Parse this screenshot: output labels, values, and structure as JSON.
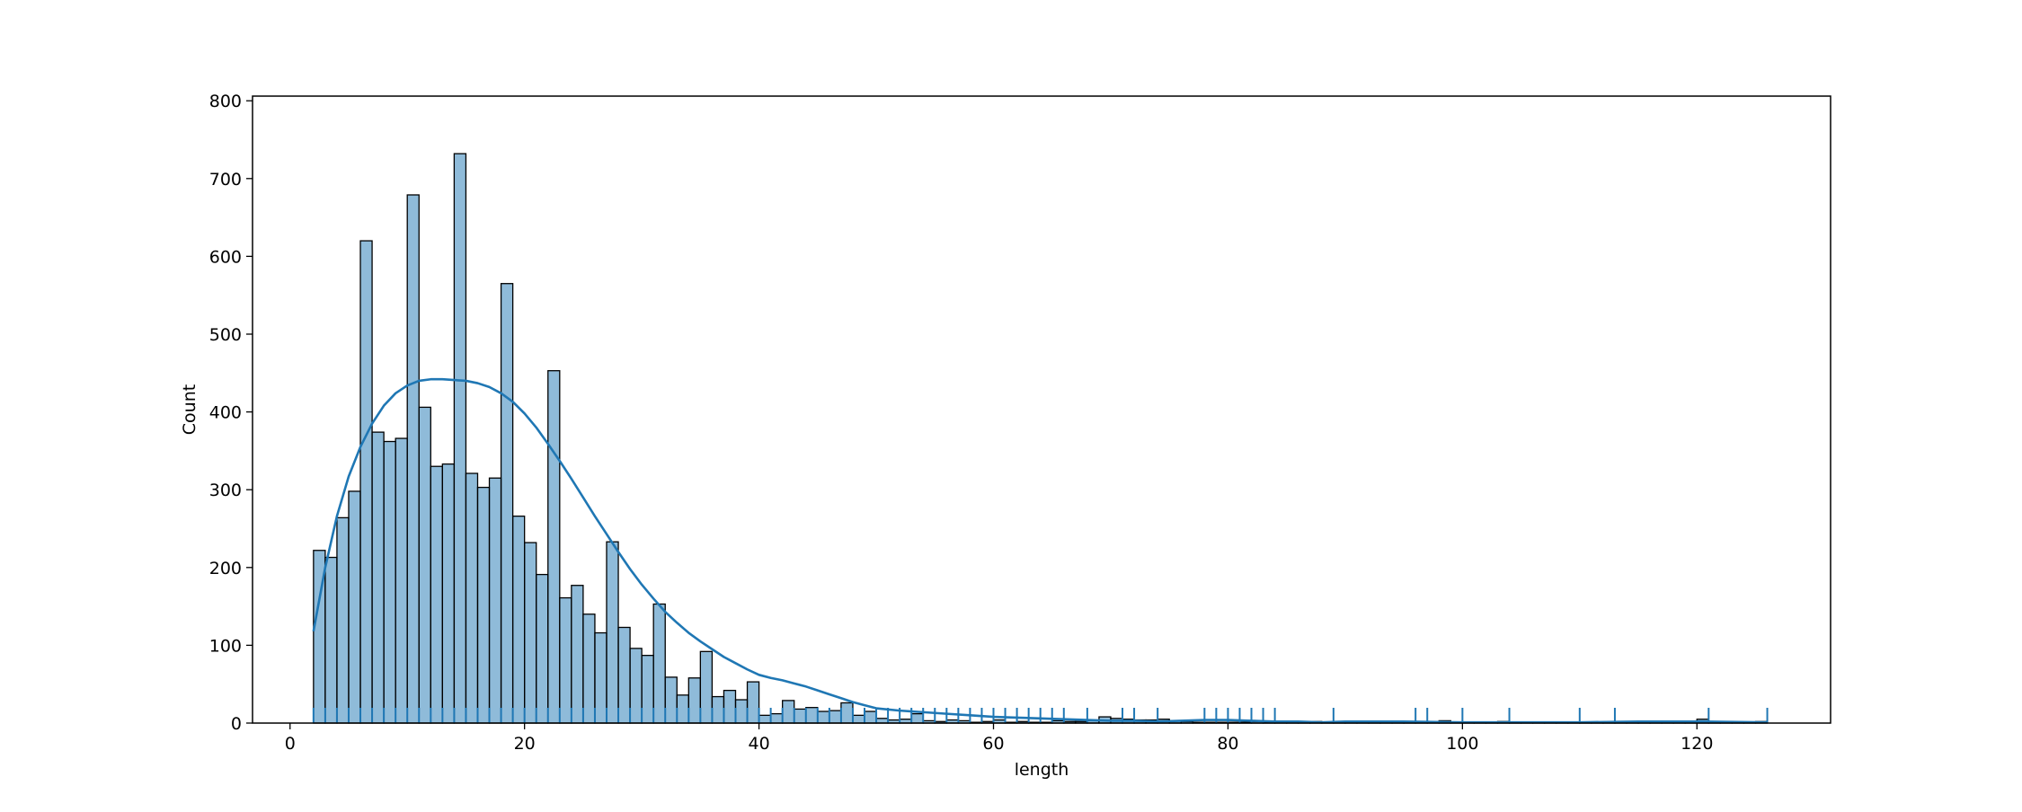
{
  "chart_data": {
    "type": "bar",
    "subtype": "histogram-with-kde-and-rug",
    "title": "",
    "xlabel": "length",
    "ylabel": "Count",
    "xlim": [
      -3.2,
      131.4
    ],
    "ylim": [
      0,
      806
    ],
    "xticks": [
      0,
      20,
      40,
      60,
      80,
      100,
      120
    ],
    "yticks": [
      0,
      100,
      200,
      300,
      400,
      500,
      600,
      700,
      800
    ],
    "grid": false,
    "legend": "none",
    "bar_color": "#1f77b4",
    "bar_alpha": 0.5,
    "line_color": "#1f77b4",
    "bin_start": 2,
    "bin_width": 1,
    "values": [
      222,
      213,
      264,
      298,
      620,
      374,
      362,
      366,
      679,
      406,
      330,
      333,
      732,
      321,
      303,
      315,
      565,
      266,
      232,
      191,
      453,
      161,
      177,
      140,
      116,
      233,
      123,
      96,
      87,
      153,
      59,
      36,
      58,
      92,
      34,
      42,
      30,
      53,
      10,
      12,
      29,
      18,
      20,
      15,
      16,
      26,
      10,
      15,
      6,
      4,
      5,
      12,
      3,
      2,
      4,
      3,
      1,
      2,
      4,
      1,
      2,
      1,
      1,
      3,
      2,
      2,
      3,
      8,
      6,
      5,
      4,
      4,
      5,
      3,
      2,
      1,
      1,
      1,
      1,
      1,
      2,
      1,
      1,
      1,
      2,
      2,
      1,
      2,
      1,
      1,
      1,
      1,
      1,
      1,
      1,
      1,
      3,
      1,
      1,
      1,
      1,
      2,
      1,
      1,
      1,
      1,
      1,
      1,
      1,
      1,
      1,
      1,
      1,
      1,
      1,
      1,
      1,
      1,
      5,
      1,
      1,
      1,
      1,
      2
    ],
    "kde": {
      "x": [
        2,
        3,
        4,
        5,
        6,
        7,
        8,
        9,
        10,
        11,
        12,
        13,
        14,
        15,
        16,
        17,
        18,
        19,
        20,
        21,
        22,
        23,
        24,
        25,
        26,
        27,
        28,
        29,
        30,
        31,
        32,
        33,
        34,
        35,
        36,
        37,
        38,
        39,
        40,
        41,
        42,
        43,
        44,
        45,
        46,
        47,
        48,
        49,
        50,
        52,
        54,
        56,
        58,
        60,
        62,
        64,
        66,
        68,
        70,
        72,
        74,
        76,
        78,
        80,
        82,
        84,
        86,
        88,
        90,
        95,
        100,
        105,
        110,
        115,
        120,
        126
      ],
      "y": [
        118,
        200,
        266,
        317,
        355,
        385,
        408,
        424,
        434,
        440,
        442,
        442,
        441,
        440,
        437,
        432,
        424,
        413,
        398,
        380,
        359,
        337,
        314,
        290,
        266,
        243,
        220,
        198,
        178,
        160,
        143,
        129,
        116,
        105,
        95,
        85,
        77,
        69,
        62,
        58,
        55,
        51,
        47,
        42,
        37,
        32,
        27,
        23,
        19,
        16,
        14,
        12,
        10,
        8,
        7,
        6,
        5,
        4,
        3,
        3,
        2,
        3,
        4,
        4,
        3,
        2,
        2,
        1,
        2,
        2,
        1,
        1,
        1,
        2,
        2,
        1
      ]
    },
    "rug": [
      2,
      3,
      4,
      5,
      6,
      7,
      8,
      9,
      10,
      11,
      12,
      13,
      14,
      15,
      16,
      17,
      18,
      19,
      20,
      21,
      22,
      23,
      24,
      25,
      26,
      27,
      28,
      29,
      30,
      31,
      32,
      33,
      34,
      35,
      36,
      37,
      38,
      39,
      40,
      41,
      42,
      43,
      44,
      45,
      46,
      47,
      48,
      49,
      50,
      51,
      52,
      53,
      54,
      55,
      56,
      57,
      58,
      59,
      60,
      61,
      62,
      63,
      64,
      65,
      66,
      68,
      71,
      72,
      74,
      78,
      79,
      80,
      81,
      82,
      83,
      84,
      89,
      96,
      97,
      100,
      104,
      110,
      113,
      121,
      126
    ]
  }
}
